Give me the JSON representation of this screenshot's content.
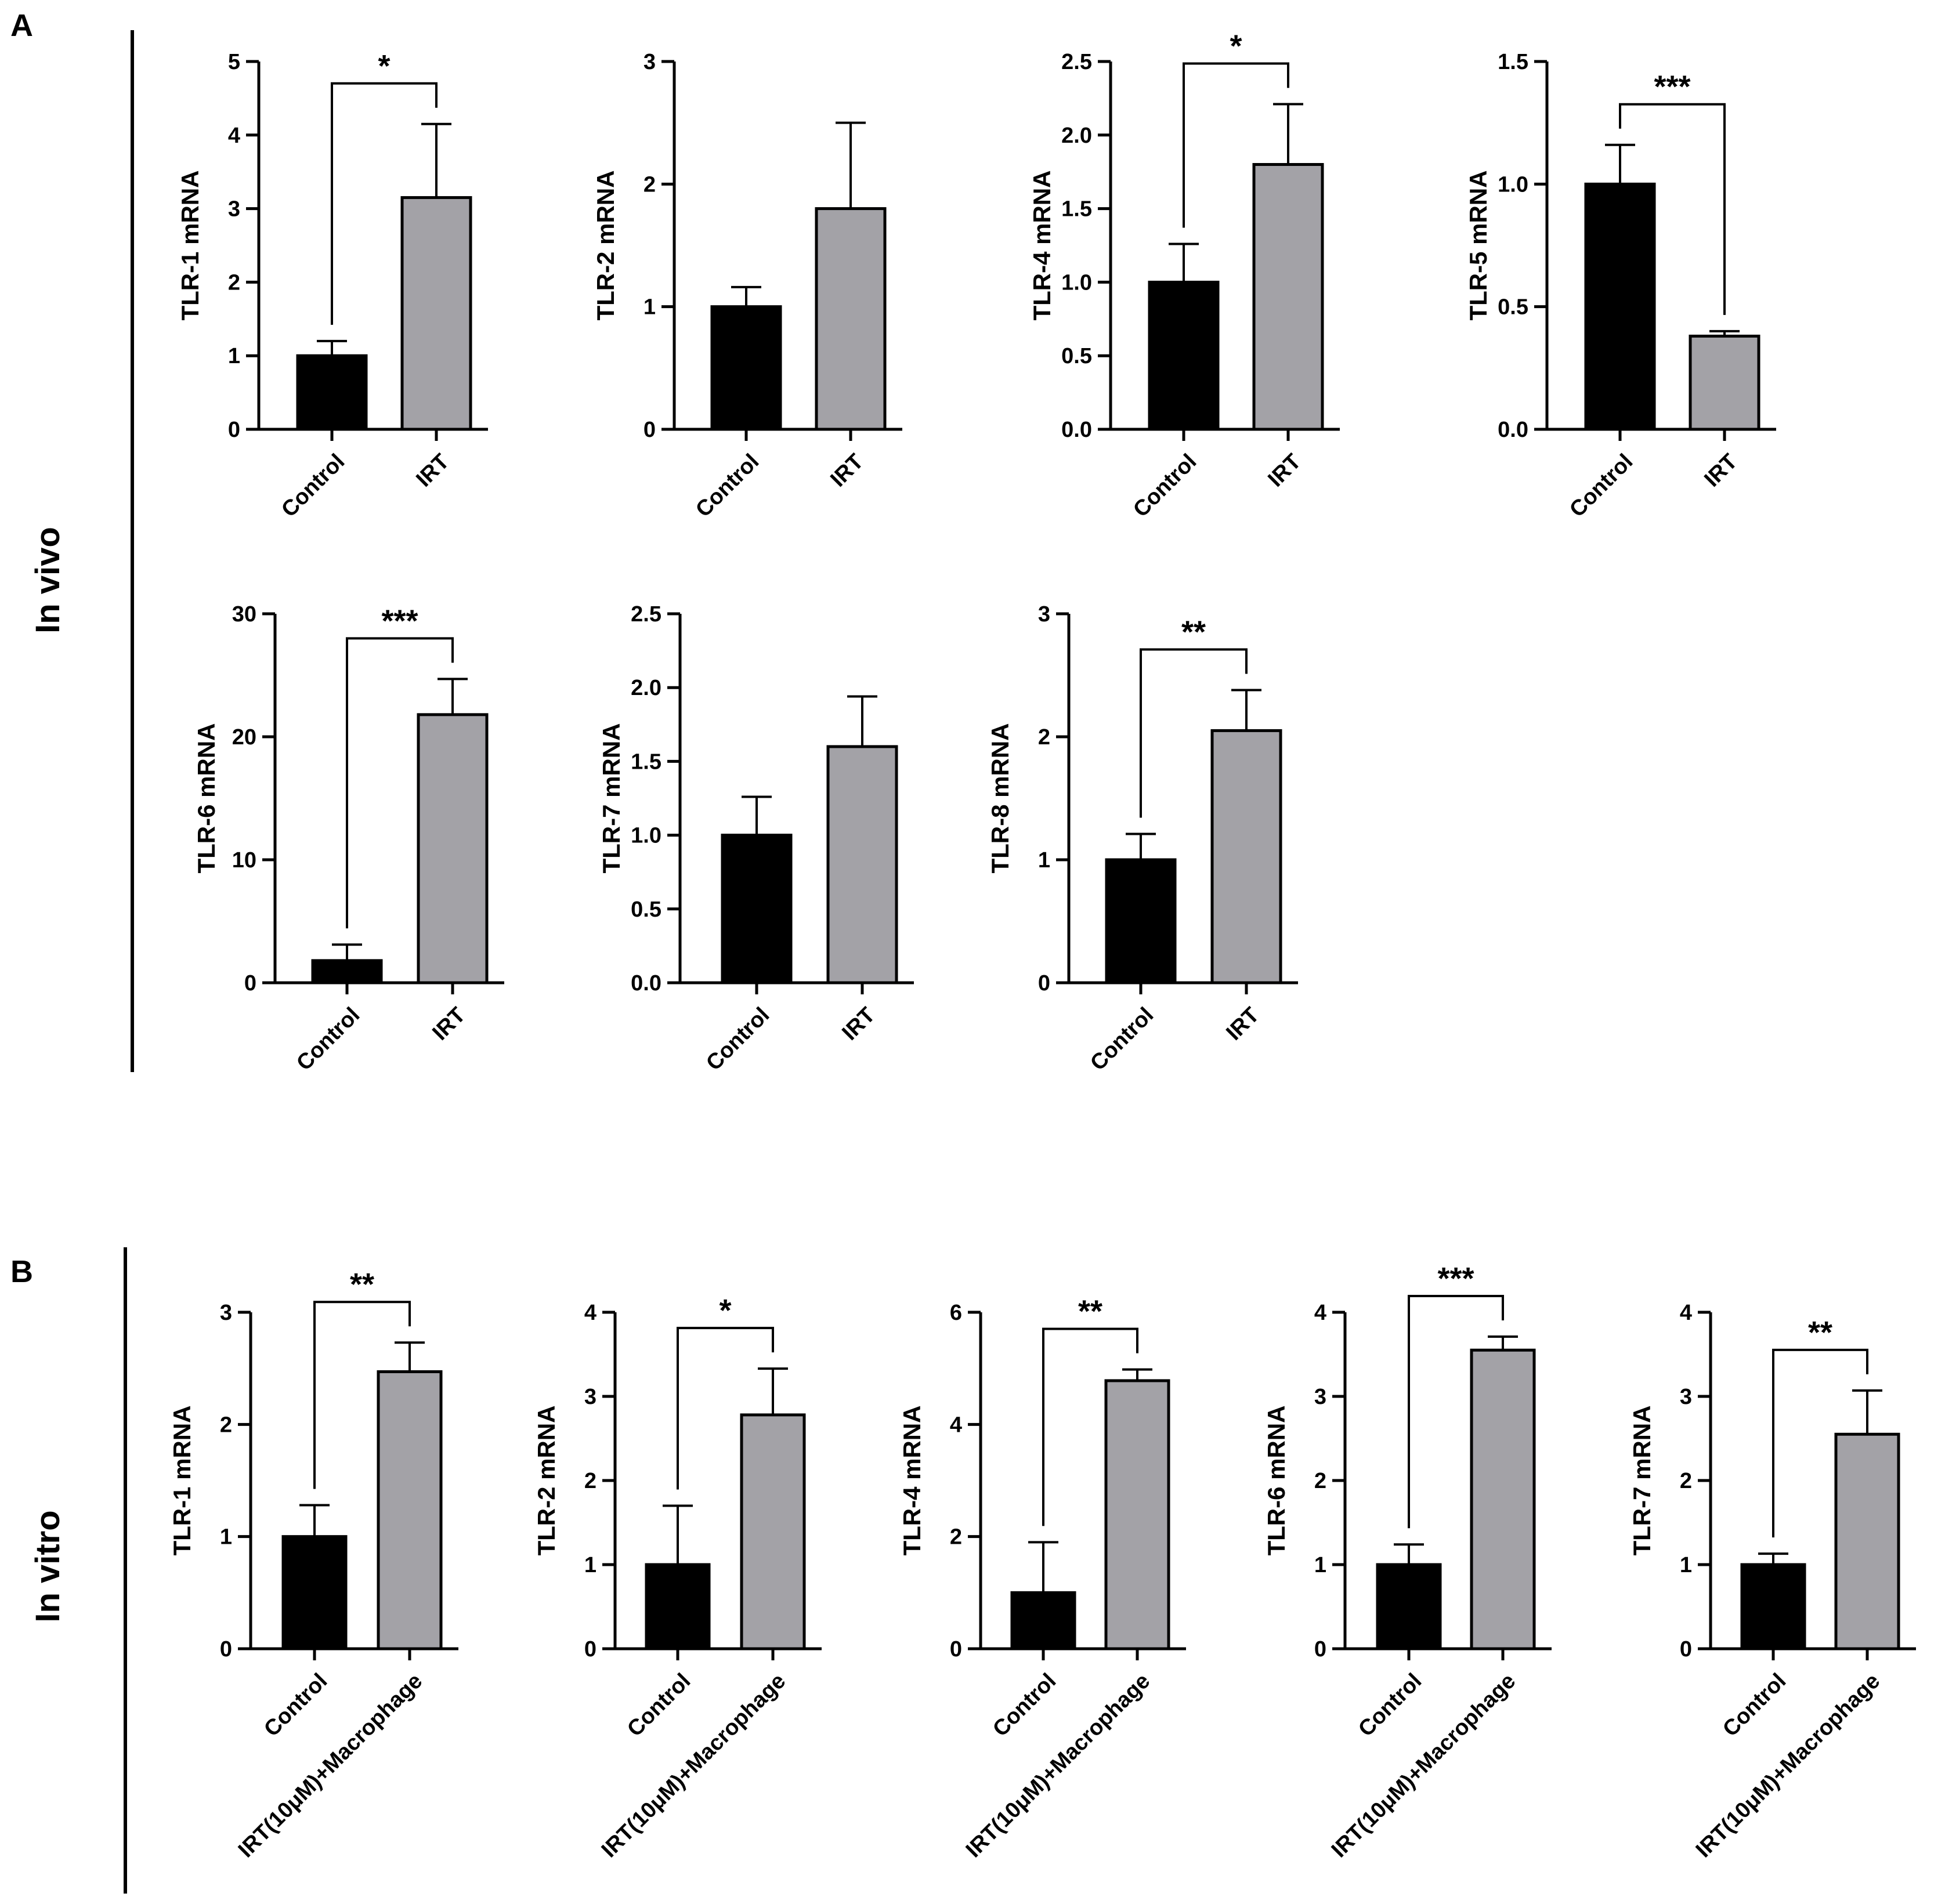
{
  "panels": {
    "A": {
      "letter": "A",
      "section_label": "In vivo"
    },
    "B": {
      "letter": "B",
      "section_label": "In vitro"
    }
  },
  "chart_data": [
    {
      "id": "a1",
      "panel": "A",
      "type": "bar",
      "title": "",
      "ylabel": "TLR-1 mRNA",
      "categories": [
        "Control",
        "IRT"
      ],
      "values": [
        1.0,
        3.15
      ],
      "errors": [
        0.2,
        1.0
      ],
      "ylim": [
        0,
        5
      ],
      "yticks": [
        "0",
        "1",
        "2",
        "3",
        "4",
        "5"
      ],
      "significance": "*"
    },
    {
      "id": "a2",
      "panel": "A",
      "type": "bar",
      "title": "",
      "ylabel": "TLR-2 mRNA",
      "categories": [
        "Control",
        "IRT"
      ],
      "values": [
        1.0,
        1.8
      ],
      "errors": [
        0.16,
        0.7
      ],
      "ylim": [
        0,
        3
      ],
      "yticks": [
        "0",
        "1",
        "2",
        "3"
      ],
      "significance": ""
    },
    {
      "id": "a3",
      "panel": "A",
      "type": "bar",
      "title": "",
      "ylabel": "TLR-4 mRNA",
      "categories": [
        "Control",
        "IRT"
      ],
      "values": [
        1.0,
        1.8
      ],
      "errors": [
        0.26,
        0.41
      ],
      "ylim": [
        0,
        2.5
      ],
      "yticks": [
        "0.0",
        "0.5",
        "1.0",
        "1.5",
        "2.0",
        "2.5"
      ],
      "significance": "*"
    },
    {
      "id": "a4",
      "panel": "A",
      "type": "bar",
      "title": "",
      "ylabel": "TLR-5 mRNA",
      "categories": [
        "Control",
        "IRT"
      ],
      "values": [
        1.0,
        0.38
      ],
      "errors": [
        0.16,
        0.02
      ],
      "ylim": [
        0,
        1.5
      ],
      "yticks": [
        "0.0",
        "0.5",
        "1.0",
        "1.5"
      ],
      "significance": "***"
    },
    {
      "id": "a5",
      "panel": "A",
      "type": "bar",
      "title": "",
      "ylabel": "TLR-6 mRNA",
      "categories": [
        "Control",
        "IRT"
      ],
      "values": [
        1.8,
        21.8
      ],
      "errors": [
        1.3,
        2.9
      ],
      "ylim": [
        0,
        30
      ],
      "yticks": [
        "0",
        "10",
        "20",
        "30"
      ],
      "significance": "***"
    },
    {
      "id": "a6",
      "panel": "A",
      "type": "bar",
      "title": "",
      "ylabel": "TLR-7 mRNA",
      "categories": [
        "Control",
        "IRT"
      ],
      "values": [
        1.0,
        1.6
      ],
      "errors": [
        0.26,
        0.34
      ],
      "ylim": [
        0,
        2.5
      ],
      "yticks": [
        "0.0",
        "0.5",
        "1.0",
        "1.5",
        "2.0",
        "2.5"
      ],
      "significance": ""
    },
    {
      "id": "a7",
      "panel": "A",
      "type": "bar",
      "title": "",
      "ylabel": "TLR-8 mRNA",
      "categories": [
        "Control",
        "IRT"
      ],
      "values": [
        1.0,
        2.05
      ],
      "errors": [
        0.21,
        0.33
      ],
      "ylim": [
        0,
        3
      ],
      "yticks": [
        "0",
        "1",
        "2",
        "3"
      ],
      "significance": "**"
    },
    {
      "id": "b1",
      "panel": "B",
      "type": "bar",
      "title": "",
      "ylabel": "TLR-1 mRNA",
      "categories": [
        "Control",
        "IRT(10μM)+Macrophage"
      ],
      "values": [
        1.0,
        2.47
      ],
      "errors": [
        0.28,
        0.26
      ],
      "ylim": [
        0,
        3
      ],
      "yticks": [
        "0",
        "1",
        "2",
        "3"
      ],
      "significance": "**"
    },
    {
      "id": "b2",
      "panel": "B",
      "type": "bar",
      "title": "",
      "ylabel": "TLR-2 mRNA",
      "categories": [
        "Control",
        "IRT(10μM)+Macrophage"
      ],
      "values": [
        1.0,
        2.78
      ],
      "errors": [
        0.7,
        0.55
      ],
      "ylim": [
        0,
        4
      ],
      "yticks": [
        "0",
        "1",
        "2",
        "3",
        "4"
      ],
      "significance": "*"
    },
    {
      "id": "b3",
      "panel": "B",
      "type": "bar",
      "title": "",
      "ylabel": "TLR-4 mRNA",
      "categories": [
        "Control",
        "IRT(10μM)+Macrophage"
      ],
      "values": [
        1.0,
        4.78
      ],
      "errors": [
        0.9,
        0.2
      ],
      "ylim": [
        0,
        6
      ],
      "yticks": [
        "0",
        "2",
        "4",
        "6"
      ],
      "significance": "**"
    },
    {
      "id": "b4",
      "panel": "B",
      "type": "bar",
      "title": "",
      "ylabel": "TLR-6 mRNA",
      "categories": [
        "Control",
        "IRT(10μM)+Macrophage"
      ],
      "values": [
        1.0,
        3.55
      ],
      "errors": [
        0.24,
        0.16
      ],
      "ylim": [
        0,
        4
      ],
      "yticks": [
        "0",
        "1",
        "2",
        "3",
        "4"
      ],
      "significance": "***"
    },
    {
      "id": "b5",
      "panel": "B",
      "type": "bar",
      "title": "",
      "ylabel": "TLR-7 mRNA",
      "categories": [
        "Control",
        "IRT(10μM)+Macrophage"
      ],
      "values": [
        1.0,
        2.55
      ],
      "errors": [
        0.13,
        0.52
      ],
      "ylim": [
        0,
        4
      ],
      "yticks": [
        "0",
        "1",
        "2",
        "3",
        "4"
      ],
      "significance": "**"
    }
  ],
  "colors": {
    "control": "#000000",
    "treated": "#a3a2a7",
    "axis": "#000000"
  }
}
